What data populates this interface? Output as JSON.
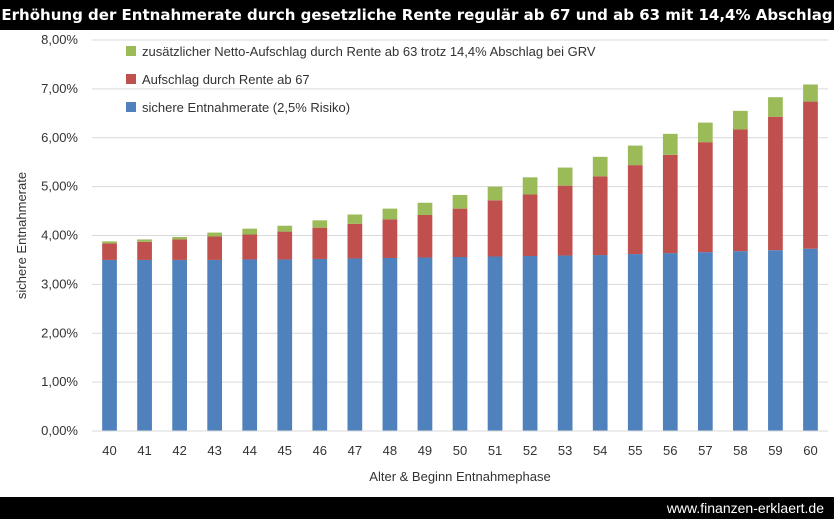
{
  "chart_data": {
    "type": "bar",
    "stacked": true,
    "title": "Erhöhung der Entnahmerate durch gesetzliche Rente regulär ab 67 und ab 63 mit 14,4% Abschlag",
    "xlabel": "Alter & Beginn Entnahmephase",
    "ylabel": "sichere Entnahmerate",
    "ylim": [
      0,
      8
    ],
    "yticks": [
      "0,00%",
      "1,00%",
      "2,00%",
      "3,00%",
      "4,00%",
      "5,00%",
      "6,00%",
      "7,00%",
      "8,00%"
    ],
    "grid": true,
    "legend_position": "top-left",
    "categories": [
      "40",
      "41",
      "42",
      "43",
      "44",
      "45",
      "46",
      "47",
      "48",
      "49",
      "50",
      "51",
      "52",
      "53",
      "54",
      "55",
      "56",
      "57",
      "58",
      "59",
      "60"
    ],
    "series": [
      {
        "name": "sichere Entnahmerate (2,5% Risiko)",
        "color": "#4f81bd",
        "values": [
          3.5,
          3.5,
          3.5,
          3.5,
          3.51,
          3.51,
          3.52,
          3.53,
          3.54,
          3.55,
          3.56,
          3.57,
          3.58,
          3.59,
          3.6,
          3.62,
          3.64,
          3.66,
          3.68,
          3.7,
          3.73
        ]
      },
      {
        "name": "Aufschlag durch Rente ab 67",
        "color": "#c0504d",
        "values": [
          0.34,
          0.37,
          0.42,
          0.48,
          0.51,
          0.57,
          0.64,
          0.71,
          0.79,
          0.87,
          0.99,
          1.15,
          1.26,
          1.43,
          1.61,
          1.82,
          2.01,
          2.25,
          2.49,
          2.73,
          3.01
        ]
      },
      {
        "name": "zusätzlicher Netto-Aufschlag durch Rente ab 63 trotz 14,4% Abschlag bei GRV",
        "color": "#9bbb59",
        "values": [
          0.04,
          0.05,
          0.05,
          0.08,
          0.12,
          0.12,
          0.15,
          0.19,
          0.22,
          0.25,
          0.28,
          0.28,
          0.35,
          0.37,
          0.4,
          0.4,
          0.43,
          0.4,
          0.38,
          0.4,
          0.35
        ]
      }
    ]
  },
  "footer": {
    "url": "www.finanzen-erklaert.de"
  }
}
